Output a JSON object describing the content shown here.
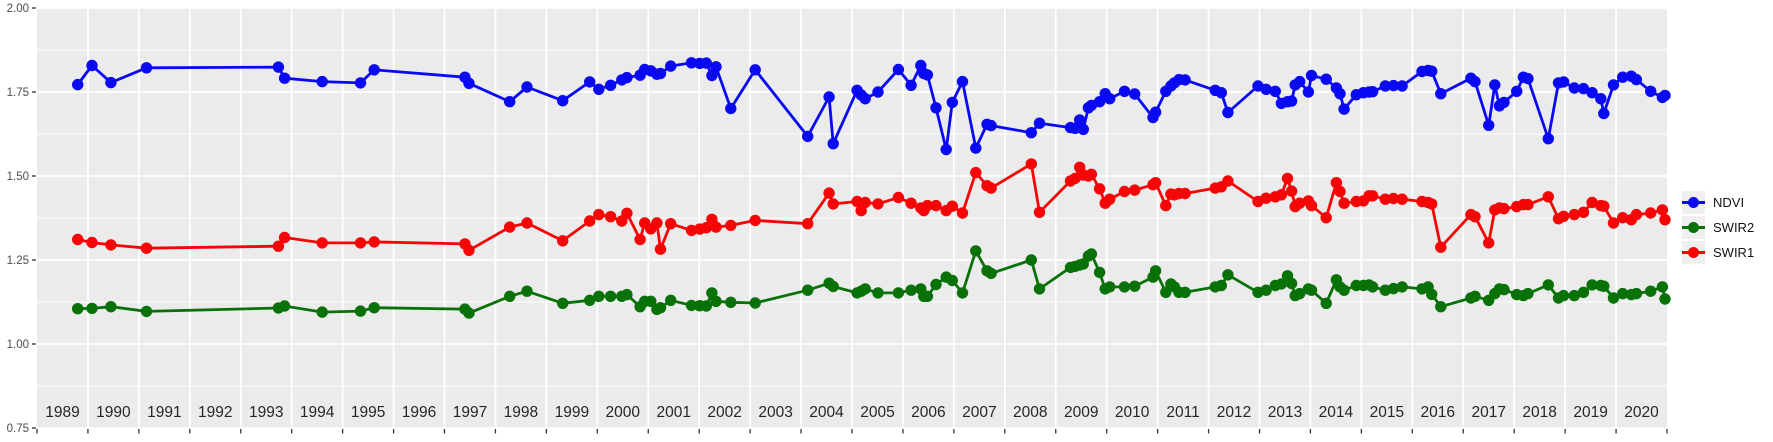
{
  "chart_data": {
    "type": "line",
    "title": "",
    "xlabel": "",
    "ylabel": "",
    "x_range": [
      1989,
      2021
    ],
    "y_range": [
      0.75,
      2.0
    ],
    "y_tick_values": [
      2.0,
      1.75,
      1.5,
      1.25,
      1.0,
      0.75
    ],
    "y_tick_labels": [
      "2.00",
      "1.75",
      "1.50",
      "1.25",
      "1.00",
      "0.75"
    ],
    "y_minor_ticks": [
      1.875,
      1.625,
      1.375,
      1.125,
      0.875
    ],
    "x_tick_labels": [
      "1989",
      "1990",
      "1991",
      "1992",
      "1993",
      "1994",
      "1995",
      "1996",
      "1997",
      "1998",
      "1999",
      "2000",
      "2001",
      "2002",
      "2003",
      "2004",
      "2005",
      "2006",
      "2007",
      "2008",
      "2009",
      "2010",
      "2011",
      "2012",
      "2013",
      "2014",
      "2015",
      "2016",
      "2017",
      "2018",
      "2019",
      "2020"
    ],
    "grid": {
      "panel_bg": "#ebebeb",
      "major_color": "#ffffff",
      "minor_color": "#ffffff",
      "legend_position": "right"
    },
    "axis_colors": {
      "y_label": "#4d4d4d",
      "x_label": "#262626",
      "tick": "#333333"
    },
    "legend": {
      "entries": [
        {
          "label": "NDVI",
          "color": "#0909f2"
        },
        {
          "label": "SWIR2",
          "color": "#087108"
        },
        {
          "label": "SWIR1",
          "color": "#f50505"
        }
      ]
    },
    "x": [
      1989.8,
      1990.08,
      1990.45,
      1991.15,
      1993.74,
      1993.86,
      1994.6,
      1995.35,
      1995.62,
      1997.4,
      1997.48,
      1998.28,
      1998.62,
      1999.32,
      1999.85,
      2000.03,
      2000.26,
      2000.48,
      2000.58,
      2000.84,
      2000.93,
      2001.05,
      2001.17,
      2001.24,
      2001.44,
      2001.85,
      2002.01,
      2002.14,
      2002.25,
      2002.33,
      2002.62,
      2003.1,
      2004.13,
      2004.55,
      2004.63,
      2005.1,
      2005.18,
      2005.26,
      2005.51,
      2005.91,
      2006.16,
      2006.35,
      2006.41,
      2006.48,
      2006.65,
      2006.85,
      2006.97,
      2007.17,
      2007.43,
      2007.65,
      2007.73,
      2008.52,
      2008.68,
      2009.29,
      2009.38,
      2009.47,
      2009.54,
      2009.64,
      2009.7,
      2009.86,
      2009.97,
      2010.06,
      2010.35,
      2010.55,
      2010.91,
      2010.96,
      2011.16,
      2011.26,
      2011.33,
      2011.42,
      2011.54,
      2012.13,
      2012.25,
      2012.38,
      2012.97,
      2013.13,
      2013.31,
      2013.43,
      2013.55,
      2013.63,
      2013.7,
      2013.79,
      2013.96,
      2014.02,
      2014.31,
      2014.51,
      2014.58,
      2014.66,
      2014.9,
      2015.04,
      2015.15,
      2015.22,
      2015.47,
      2015.63,
      2015.8,
      2016.19,
      2016.31,
      2016.38,
      2016.56,
      2017.15,
      2017.23,
      2017.5,
      2017.62,
      2017.71,
      2017.8,
      2018.05,
      2018.18,
      2018.27,
      2018.67,
      2018.87,
      2018.97,
      2019.18,
      2019.36,
      2019.53,
      2019.7,
      2019.76,
      2019.95,
      2020.13,
      2020.3,
      2020.4,
      2020.68,
      2020.91,
      2020.96
    ],
    "series": [
      {
        "name": "NDVI",
        "color": "#0909f2",
        "values": [
          1.772,
          1.829,
          1.778,
          1.822,
          1.824,
          1.791,
          1.781,
          1.777,
          1.816,
          1.794,
          1.776,
          1.721,
          1.765,
          1.724,
          1.78,
          1.758,
          1.77,
          1.786,
          1.793,
          1.8,
          1.817,
          1.813,
          1.803,
          1.805,
          1.827,
          1.837,
          1.835,
          1.836,
          1.799,
          1.825,
          1.701,
          1.816,
          1.618,
          1.735,
          1.596,
          1.755,
          1.741,
          1.73,
          1.75,
          1.817,
          1.77,
          1.829,
          1.805,
          1.801,
          1.703,
          1.579,
          1.719,
          1.781,
          1.583,
          1.654,
          1.65,
          1.629,
          1.657,
          1.644,
          1.642,
          1.667,
          1.639,
          1.703,
          1.71,
          1.721,
          1.745,
          1.73,
          1.752,
          1.744,
          1.674,
          1.69,
          1.752,
          1.768,
          1.777,
          1.787,
          1.786,
          1.755,
          1.748,
          1.689,
          1.768,
          1.758,
          1.752,
          1.716,
          1.721,
          1.723,
          1.771,
          1.781,
          1.75,
          1.799,
          1.788,
          1.762,
          1.745,
          1.699,
          1.742,
          1.748,
          1.75,
          1.751,
          1.768,
          1.769,
          1.768,
          1.811,
          1.814,
          1.812,
          1.745,
          1.791,
          1.781,
          1.651,
          1.771,
          1.709,
          1.719,
          1.752,
          1.794,
          1.79,
          1.611,
          1.777,
          1.78,
          1.762,
          1.76,
          1.748,
          1.73,
          1.686,
          1.771,
          1.794,
          1.797,
          1.787,
          1.752,
          1.734,
          1.74
        ]
      },
      {
        "name": "SWIR2",
        "color": "#087108",
        "values": [
          1.105,
          1.106,
          1.111,
          1.097,
          1.107,
          1.113,
          1.095,
          1.098,
          1.108,
          1.104,
          1.092,
          1.142,
          1.157,
          1.121,
          1.13,
          1.142,
          1.142,
          1.142,
          1.147,
          1.111,
          1.127,
          1.127,
          1.103,
          1.108,
          1.13,
          1.115,
          1.114,
          1.113,
          1.152,
          1.127,
          1.124,
          1.122,
          1.16,
          1.181,
          1.171,
          1.152,
          1.157,
          1.164,
          1.152,
          1.152,
          1.16,
          1.164,
          1.142,
          1.142,
          1.177,
          1.199,
          1.189,
          1.152,
          1.277,
          1.218,
          1.21,
          1.25,
          1.164,
          1.228,
          1.231,
          1.235,
          1.238,
          1.262,
          1.268,
          1.213,
          1.164,
          1.17,
          1.17,
          1.172,
          1.199,
          1.218,
          1.154,
          1.179,
          1.17,
          1.154,
          1.154,
          1.17,
          1.174,
          1.206,
          1.154,
          1.16,
          1.174,
          1.179,
          1.203,
          1.18,
          1.144,
          1.15,
          1.164,
          1.16,
          1.121,
          1.191,
          1.17,
          1.16,
          1.174,
          1.174,
          1.176,
          1.17,
          1.16,
          1.165,
          1.17,
          1.164,
          1.17,
          1.148,
          1.111,
          1.137,
          1.142,
          1.13,
          1.15,
          1.164,
          1.162,
          1.147,
          1.144,
          1.15,
          1.176,
          1.137,
          1.144,
          1.144,
          1.154,
          1.176,
          1.174,
          1.172,
          1.137,
          1.15,
          1.147,
          1.15,
          1.157,
          1.17,
          1.134
        ]
      },
      {
        "name": "SWIR1",
        "color": "#f50505",
        "values": [
          1.311,
          1.302,
          1.295,
          1.285,
          1.291,
          1.317,
          1.301,
          1.301,
          1.304,
          1.298,
          1.279,
          1.348,
          1.36,
          1.307,
          1.366,
          1.385,
          1.379,
          1.366,
          1.389,
          1.311,
          1.36,
          1.343,
          1.36,
          1.282,
          1.358,
          1.338,
          1.342,
          1.346,
          1.371,
          1.348,
          1.353,
          1.368,
          1.358,
          1.449,
          1.417,
          1.424,
          1.397,
          1.421,
          1.417,
          1.436,
          1.419,
          1.405,
          1.397,
          1.412,
          1.412,
          1.397,
          1.41,
          1.39,
          1.51,
          1.471,
          1.464,
          1.536,
          1.392,
          1.485,
          1.493,
          1.526,
          1.503,
          1.5,
          1.505,
          1.462,
          1.419,
          1.431,
          1.454,
          1.458,
          1.474,
          1.48,
          1.412,
          1.446,
          1.444,
          1.448,
          1.448,
          1.464,
          1.468,
          1.485,
          1.424,
          1.434,
          1.438,
          1.444,
          1.493,
          1.455,
          1.409,
          1.419,
          1.426,
          1.412,
          1.376,
          1.48,
          1.454,
          1.419,
          1.424,
          1.426,
          1.441,
          1.441,
          1.431,
          1.433,
          1.431,
          1.424,
          1.421,
          1.417,
          1.288,
          1.385,
          1.379,
          1.301,
          1.399,
          1.405,
          1.403,
          1.409,
          1.415,
          1.415,
          1.438,
          1.373,
          1.38,
          1.385,
          1.392,
          1.421,
          1.412,
          1.41,
          1.36,
          1.376,
          1.37,
          1.385,
          1.39,
          1.399,
          1.37
        ]
      }
    ]
  }
}
